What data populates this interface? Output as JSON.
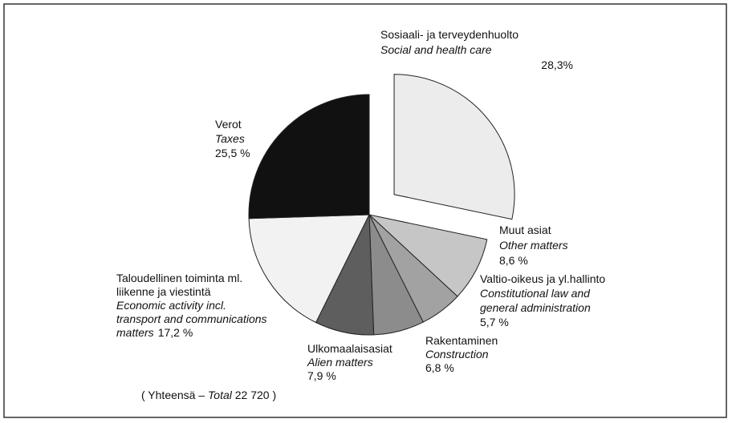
{
  "chart_data": {
    "type": "pie",
    "labels": [
      {
        "fi": [
          "Sosiaali- ja terveydenhuolto"
        ],
        "en": [
          "Social and health care"
        ]
      },
      {
        "fi": [
          "Muut asiat"
        ],
        "en": [
          "Other matters"
        ]
      },
      {
        "fi": [
          "Valtio-oikeus ja yl.hallinto"
        ],
        "en": [
          "Constitutional law and",
          "general administration"
        ]
      },
      {
        "fi": [
          "Rakentaminen"
        ],
        "en": [
          "Construction"
        ]
      },
      {
        "fi": [
          "Ulkomaalaisasiat"
        ],
        "en": [
          "Alien matters"
        ]
      },
      {
        "fi": [
          "Taloudellinen toiminta ml.",
          "liikenne ja viestintä"
        ],
        "en": [
          "Economic activity incl.",
          "transport and communications",
          "matters"
        ]
      },
      {
        "fi": [
          "Verot"
        ],
        "en": [
          "Taxes"
        ]
      }
    ],
    "values": [
      28.3,
      8.6,
      5.7,
      6.8,
      7.9,
      17.2,
      25.5
    ],
    "value_labels": [
      "28,3%",
      "8,6 %",
      "5,7 %",
      "6,8 %",
      "7,9 %",
      "17,2 %",
      "25,5 %"
    ],
    "colors": [
      "#ececec",
      "#c6c6c6",
      "#a2a2a2",
      "#8c8c8c",
      "#5e5e5e",
      "#f2f2f2",
      "#111111"
    ],
    "exploded": [
      true,
      false,
      false,
      false,
      false,
      false,
      false
    ],
    "footnote": {
      "prefix": "( Yhteensä –",
      "en": "Total",
      "total": {
        "value": 22720,
        "label": "22 720"
      },
      "suffix": ")"
    }
  }
}
